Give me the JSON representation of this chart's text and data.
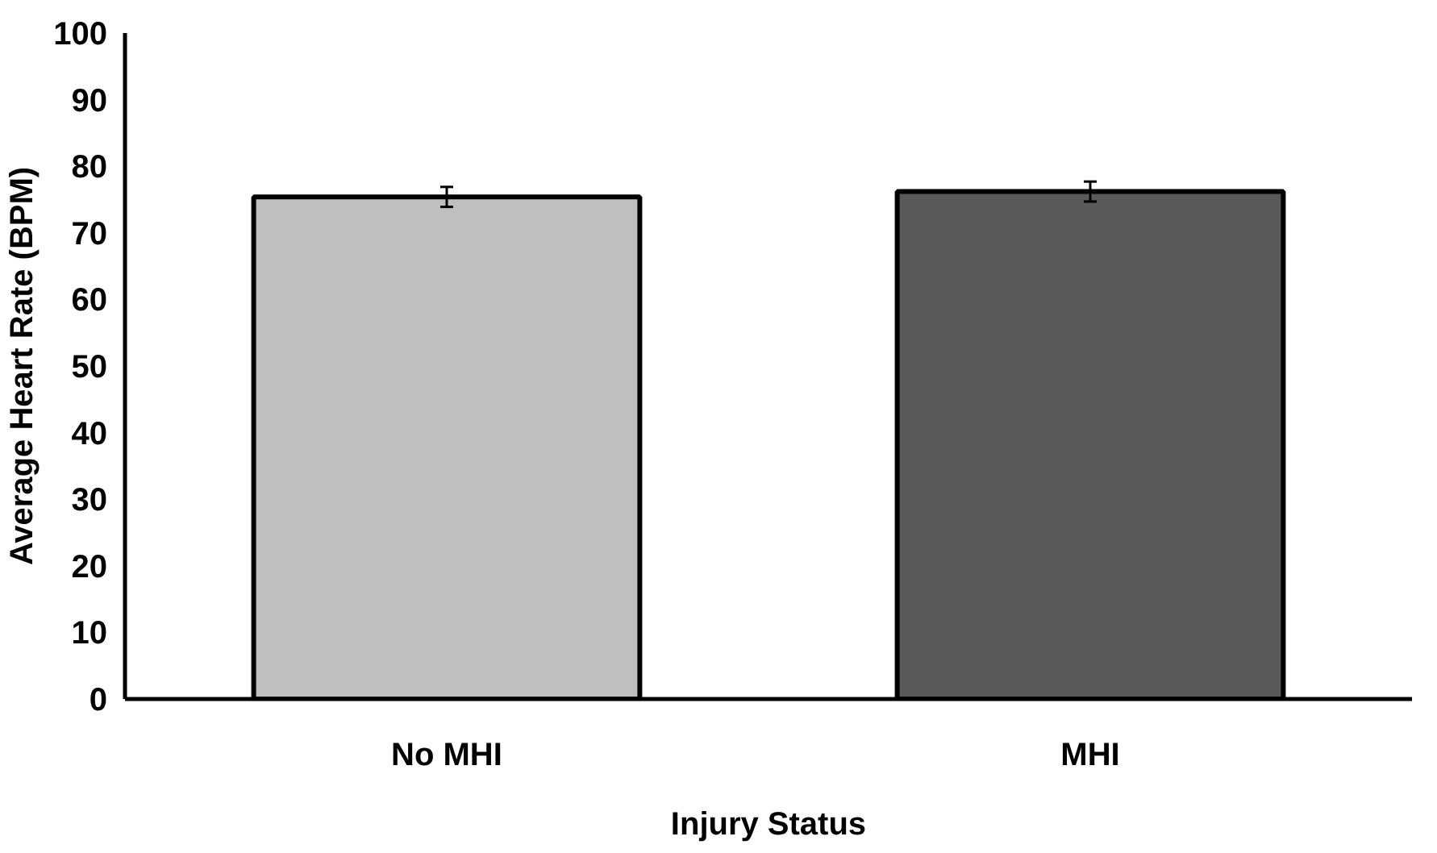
{
  "chart_data": {
    "type": "bar",
    "xlabel": "Injury Status",
    "ylabel": "Average Heart Rate (BPM)",
    "categories": [
      "No MHI",
      "MHI"
    ],
    "values": [
      75.4,
      76.2
    ],
    "colors": [
      "#bfbfbf",
      "#595959"
    ],
    "errors": [
      1.5,
      1.5
    ],
    "ylim": [
      0,
      100
    ],
    "yticks": [
      0,
      10,
      20,
      30,
      40,
      50,
      60,
      70,
      80,
      90,
      100
    ],
    "grid": false
  }
}
